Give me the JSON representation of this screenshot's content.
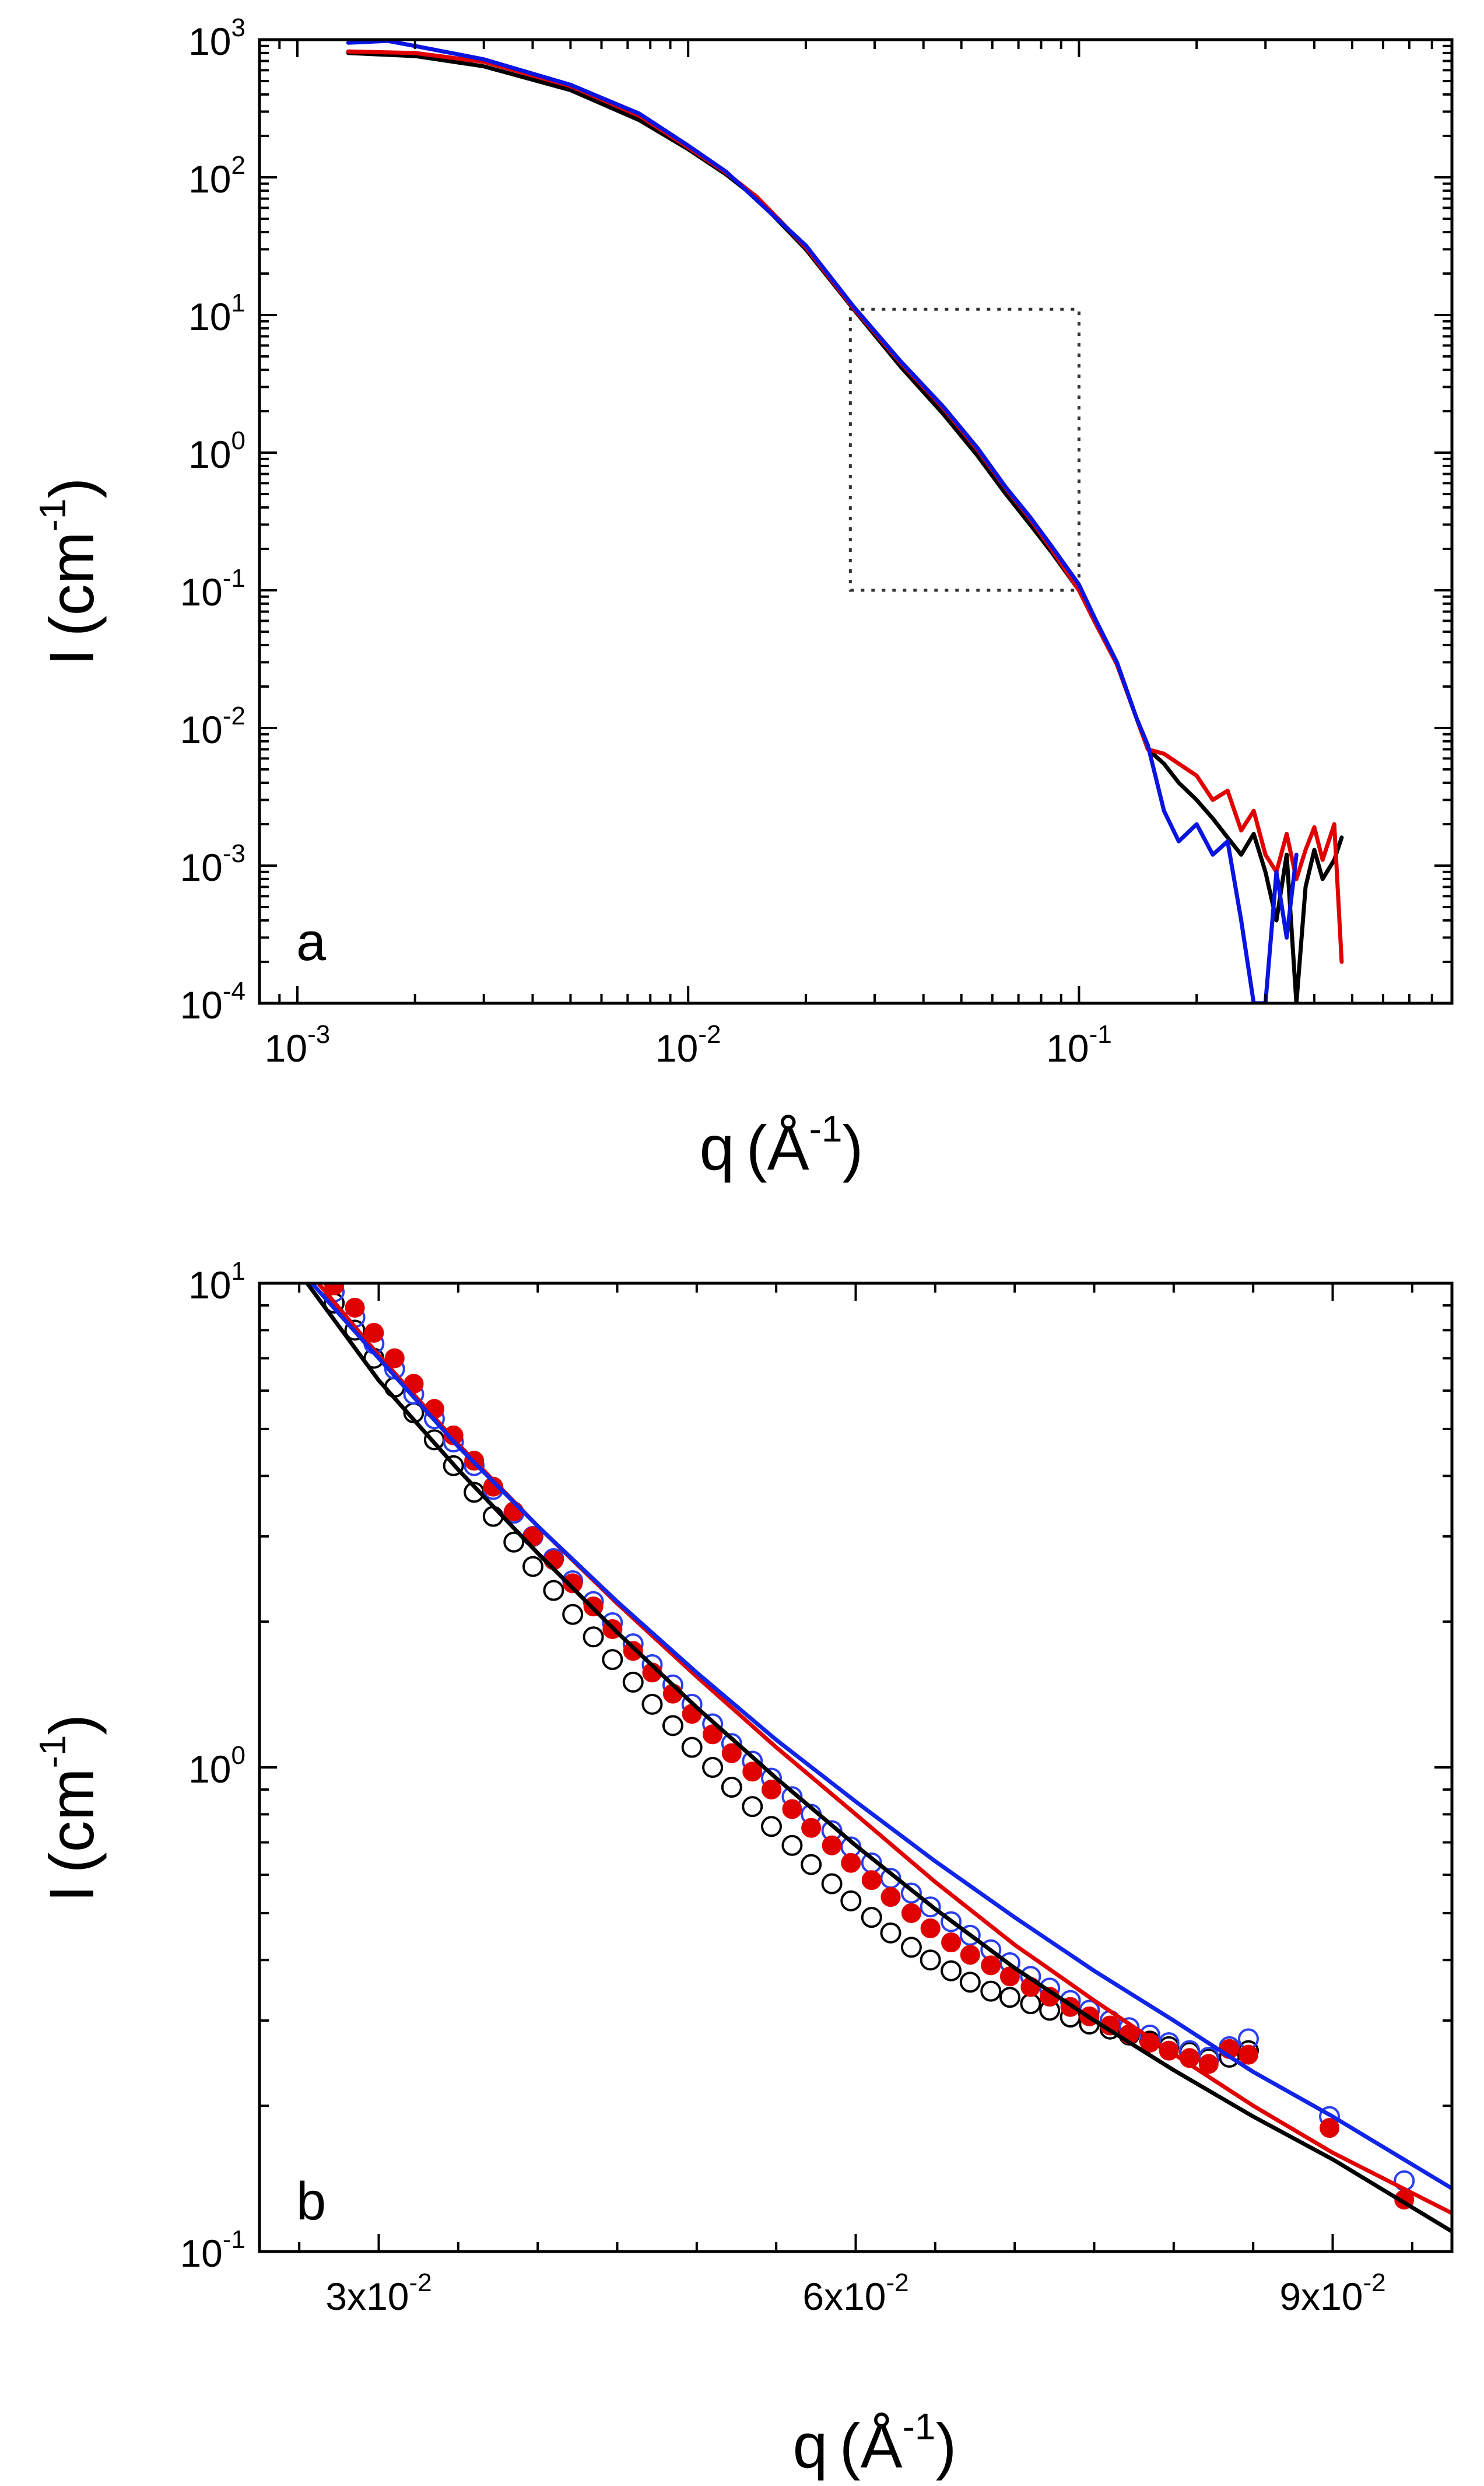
{
  "chart_data": [
    {
      "panel": "a",
      "type": "line",
      "xscale": "log",
      "yscale": "log",
      "xlim": [
        0.0008,
        0.9
      ],
      "ylim": [
        0.0001,
        1000
      ],
      "xlabel": "q",
      "xlabel_unit_base": "Å",
      "xlabel_unit_exp": "-1",
      "ylabel": "I",
      "ylabel_unit_base": "cm",
      "ylabel_unit_exp": "-1",
      "xticks": [
        {
          "base": "10",
          "exp": "-3",
          "value": 0.001
        },
        {
          "base": "10",
          "exp": "-2",
          "value": 0.01
        },
        {
          "base": "10",
          "exp": "-1",
          "value": 0.1
        }
      ],
      "yticks": [
        {
          "base": "10",
          "exp": "-4",
          "value": 0.0001
        },
        {
          "base": "10",
          "exp": "-3",
          "value": 0.001
        },
        {
          "base": "10",
          "exp": "-2",
          "value": 0.01
        },
        {
          "base": "10",
          "exp": "-1",
          "value": 0.1
        },
        {
          "base": "10",
          "exp": "0",
          "value": 1
        },
        {
          "base": "10",
          "exp": "1",
          "value": 10
        },
        {
          "base": "10",
          "exp": "2",
          "value": 100
        },
        {
          "base": "10",
          "exp": "3",
          "value": 1000
        }
      ],
      "zoom_box": {
        "x": [
          0.026,
          0.1
        ],
        "y": [
          0.1,
          11
        ]
      },
      "series": [
        {
          "name": "black",
          "color": "#000000",
          "x": [
            0.00135,
            0.002,
            0.003,
            0.005,
            0.0075,
            0.01,
            0.0125,
            0.015,
            0.02,
            0.0265,
            0.035,
            0.045,
            0.055,
            0.065,
            0.075,
            0.085,
            0.1,
            0.11,
            0.125,
            0.14,
            0.15,
            0.165,
            0.18,
            0.2,
            0.22,
            0.24,
            0.26,
            0.28,
            0.3,
            0.32,
            0.34,
            0.36,
            0.38,
            0.4,
            0.42,
            0.45,
            0.47
          ],
          "y": [
            800,
            760,
            640,
            430,
            260,
            160,
            105,
            70,
            30,
            11,
            4.2,
            1.9,
            0.95,
            0.5,
            0.3,
            0.19,
            0.1,
            0.06,
            0.03,
            0.012,
            0.007,
            0.0055,
            0.004,
            0.003,
            0.0022,
            0.0016,
            0.0012,
            0.0017,
            0.0009,
            0.0004,
            0.0012,
            0.0001,
            0.0007,
            0.0013,
            0.0008,
            0.0011,
            0.0016
          ]
        },
        {
          "name": "red",
          "color": "#e00000",
          "x": [
            0.00135,
            0.002,
            0.003,
            0.005,
            0.0075,
            0.01,
            0.0125,
            0.015,
            0.02,
            0.0265,
            0.035,
            0.045,
            0.055,
            0.065,
            0.075,
            0.085,
            0.1,
            0.11,
            0.125,
            0.14,
            0.15,
            0.165,
            0.18,
            0.2,
            0.22,
            0.24,
            0.26,
            0.28,
            0.3,
            0.32,
            0.34,
            0.36,
            0.38,
            0.4,
            0.42,
            0.45,
            0.47
          ],
          "y": [
            820,
            800,
            690,
            460,
            280,
            165,
            108,
            72,
            31,
            11.2,
            4.5,
            2.1,
            1.05,
            0.55,
            0.33,
            0.2,
            0.1,
            0.058,
            0.029,
            0.012,
            0.007,
            0.0065,
            0.0055,
            0.0045,
            0.003,
            0.0035,
            0.0018,
            0.0025,
            0.0012,
            0.0009,
            0.0017,
            0.0008,
            0.0013,
            0.0019,
            0.0011,
            0.002,
            0.0002
          ]
        },
        {
          "name": "blue",
          "color": "#0a14e0",
          "x": [
            0.00135,
            0.0017,
            0.002,
            0.003,
            0.005,
            0.0075,
            0.01,
            0.0125,
            0.015,
            0.02,
            0.0265,
            0.035,
            0.045,
            0.055,
            0.065,
            0.075,
            0.085,
            0.1,
            0.11,
            0.125,
            0.14,
            0.15,
            0.165,
            0.18,
            0.2,
            0.22,
            0.24,
            0.26,
            0.28,
            0.3,
            0.32,
            0.34,
            0.36
          ],
          "y": [
            950,
            980,
            900,
            720,
            470,
            290,
            170,
            110,
            68,
            32,
            11.5,
            4.6,
            2.15,
            1.08,
            0.56,
            0.34,
            0.21,
            0.11,
            0.062,
            0.03,
            0.012,
            0.0075,
            0.0025,
            0.0015,
            0.002,
            0.0012,
            0.0015,
            0.0004,
            0.0001,
            0.0001,
            0.0009,
            0.0003,
            0.0012
          ]
        }
      ]
    },
    {
      "panel": "b",
      "type": "scatter",
      "xscale": "linear",
      "yscale": "log",
      "xlim": [
        0.0225,
        0.0975
      ],
      "ylim": [
        0.1,
        10
      ],
      "xlabel": "q",
      "xlabel_unit_base": "Å",
      "xlabel_unit_exp": "-1",
      "ylabel": "I",
      "ylabel_unit_base": "cm",
      "ylabel_unit_exp": "-1",
      "xticks": [
        {
          "base": "3x10",
          "exp": "-2",
          "value": 0.03
        },
        {
          "base": "6x10",
          "exp": "-2",
          "value": 0.06
        },
        {
          "base": "9x10",
          "exp": "-2",
          "value": 0.09
        }
      ],
      "yticks": [
        {
          "base": "10",
          "exp": "-1",
          "value": 0.1
        },
        {
          "base": "10",
          "exp": "0",
          "value": 1
        },
        {
          "base": "10",
          "exp": "1",
          "value": 10
        }
      ],
      "series": [
        {
          "name": "black data",
          "color": "#000000",
          "marker": "open-circle",
          "x": [
            0.0272,
            0.0285,
            0.0297,
            0.031,
            0.0322,
            0.0335,
            0.0347,
            0.036,
            0.0372,
            0.0385,
            0.0397,
            0.041,
            0.0422,
            0.0435,
            0.0447,
            0.046,
            0.0472,
            0.0485,
            0.0497,
            0.051,
            0.0522,
            0.0535,
            0.0547,
            0.056,
            0.0572,
            0.0585,
            0.0597,
            0.061,
            0.0622,
            0.0635,
            0.0647,
            0.066,
            0.0672,
            0.0685,
            0.0697,
            0.071,
            0.0722,
            0.0735,
            0.0747,
            0.076,
            0.0772,
            0.0785,
            0.0797,
            0.081,
            0.0822,
            0.0835,
            0.0847
          ],
          "y": [
            9.1,
            8.0,
            7.0,
            6.1,
            5.4,
            4.75,
            4.2,
            3.7,
            3.3,
            2.92,
            2.6,
            2.32,
            2.07,
            1.86,
            1.67,
            1.5,
            1.35,
            1.22,
            1.1,
            1.0,
            0.91,
            0.83,
            0.755,
            0.69,
            0.63,
            0.575,
            0.53,
            0.49,
            0.455,
            0.425,
            0.4,
            0.38,
            0.36,
            0.345,
            0.335,
            0.325,
            0.315,
            0.305,
            0.295,
            0.288,
            0.28,
            0.272,
            0.265,
            0.258,
            0.25,
            0.252,
            0.26
          ]
        },
        {
          "name": "blue data",
          "color": "#2a3ff0",
          "marker": "open-circle",
          "x": [
            0.0272,
            0.0285,
            0.0297,
            0.031,
            0.0322,
            0.0335,
            0.0347,
            0.036,
            0.0372,
            0.0385,
            0.0397,
            0.041,
            0.0422,
            0.0435,
            0.0447,
            0.046,
            0.0472,
            0.0485,
            0.0497,
            0.051,
            0.0522,
            0.0535,
            0.0547,
            0.056,
            0.0572,
            0.0585,
            0.0597,
            0.061,
            0.0622,
            0.0635,
            0.0647,
            0.066,
            0.0672,
            0.0685,
            0.0697,
            0.071,
            0.0722,
            0.0735,
            0.0747,
            0.076,
            0.0772,
            0.0785,
            0.0797,
            0.081,
            0.0822,
            0.0835,
            0.0847,
            0.0898,
            0.0945
          ],
          "y": [
            9.6,
            8.5,
            7.5,
            6.65,
            5.9,
            5.25,
            4.7,
            4.2,
            3.75,
            3.35,
            3.0,
            2.7,
            2.43,
            2.2,
            1.99,
            1.8,
            1.63,
            1.48,
            1.35,
            1.23,
            1.12,
            1.03,
            0.95,
            0.87,
            0.8,
            0.74,
            0.685,
            0.635,
            0.59,
            0.55,
            0.515,
            0.48,
            0.45,
            0.42,
            0.395,
            0.37,
            0.35,
            0.33,
            0.315,
            0.3,
            0.29,
            0.28,
            0.27,
            0.26,
            0.252,
            0.265,
            0.275,
            0.19,
            0.14
          ]
        },
        {
          "name": "red data",
          "color": "#e00000",
          "marker": "filled-circle",
          "x": [
            0.0272,
            0.0285,
            0.0297,
            0.031,
            0.0322,
            0.0335,
            0.0347,
            0.036,
            0.0372,
            0.0385,
            0.0397,
            0.041,
            0.0422,
            0.0435,
            0.0447,
            0.046,
            0.0472,
            0.0485,
            0.0497,
            0.051,
            0.0522,
            0.0535,
            0.0547,
            0.056,
            0.0572,
            0.0585,
            0.0597,
            0.061,
            0.0622,
            0.0635,
            0.0647,
            0.066,
            0.0672,
            0.0685,
            0.0697,
            0.071,
            0.0722,
            0.0735,
            0.0747,
            0.076,
            0.0772,
            0.0785,
            0.0797,
            0.081,
            0.0822,
            0.0835,
            0.0847,
            0.0898,
            0.0945
          ],
          "y": [
            9.9,
            8.9,
            7.9,
            7.0,
            6.2,
            5.5,
            4.85,
            4.3,
            3.8,
            3.38,
            3.0,
            2.68,
            2.4,
            2.15,
            1.93,
            1.74,
            1.57,
            1.42,
            1.29,
            1.17,
            1.07,
            0.98,
            0.9,
            0.82,
            0.75,
            0.69,
            0.635,
            0.585,
            0.54,
            0.5,
            0.465,
            0.435,
            0.41,
            0.39,
            0.37,
            0.352,
            0.336,
            0.32,
            0.306,
            0.293,
            0.281,
            0.27,
            0.26,
            0.251,
            0.244,
            0.262,
            0.255,
            0.18,
            0.128
          ]
        },
        {
          "name": "black fit",
          "color": "#000000",
          "marker": "line",
          "x": [
            0.0255,
            0.03,
            0.035,
            0.04,
            0.045,
            0.05,
            0.055,
            0.06,
            0.065,
            0.07,
            0.075,
            0.08,
            0.085,
            0.09,
            0.0975
          ],
          "y": [
            10.0,
            6.3,
            4.12,
            2.77,
            1.9,
            1.33,
            0.95,
            0.69,
            0.51,
            0.385,
            0.3,
            0.237,
            0.19,
            0.155,
            0.11
          ]
        },
        {
          "name": "red fit",
          "color": "#e00000",
          "marker": "line",
          "x": [
            0.0262,
            0.03,
            0.035,
            0.04,
            0.045,
            0.05,
            0.055,
            0.06,
            0.065,
            0.07,
            0.075,
            0.08,
            0.085,
            0.09,
            0.0975
          ],
          "y": [
            10.0,
            7.1,
            4.65,
            3.15,
            2.18,
            1.54,
            1.1,
            0.8,
            0.58,
            0.43,
            0.33,
            0.256,
            0.2,
            0.16,
            0.12
          ]
        },
        {
          "name": "blue fit",
          "color": "#1025e8",
          "marker": "line",
          "x": [
            0.0258,
            0.03,
            0.035,
            0.04,
            0.045,
            0.05,
            0.055,
            0.06,
            0.065,
            0.07,
            0.075,
            0.08,
            0.085,
            0.09,
            0.0975
          ],
          "y": [
            10.0,
            7.0,
            4.6,
            3.15,
            2.2,
            1.57,
            1.14,
            0.85,
            0.64,
            0.49,
            0.38,
            0.3,
            0.235,
            0.19,
            0.135
          ]
        }
      ]
    }
  ]
}
